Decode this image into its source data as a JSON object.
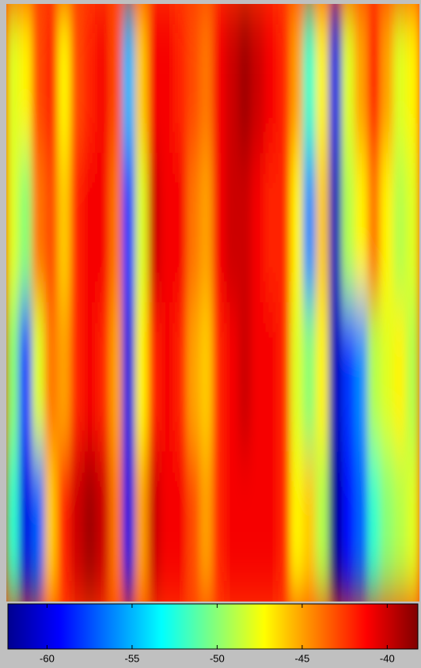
{
  "chart_data": {
    "type": "heatmap",
    "values": [
      [
        -48,
        -47,
        -43,
        -42,
        -47,
        -43,
        -42,
        -41,
        -43,
        -55,
        -46,
        -41,
        -41,
        -42,
        -43,
        -44,
        -41,
        -40,
        -39,
        -40,
        -41,
        -42,
        -45,
        -52,
        -47,
        -60,
        -48,
        -45,
        -42,
        -45,
        -48,
        -47
      ],
      [
        -48,
        -50,
        -44,
        -43,
        -46,
        -42,
        -41,
        -41,
        -44,
        -58,
        -48,
        -40,
        -41,
        -41,
        -44,
        -45,
        -41,
        -40,
        -40,
        -41,
        -42,
        -42,
        -47,
        -56,
        -46,
        -61,
        -49,
        -47,
        -44,
        -47,
        -49,
        -48
      ],
      [
        -50,
        -58,
        -48,
        -44,
        -45,
        -42,
        -41,
        -42,
        -45,
        -60,
        -47,
        -42,
        -41,
        -42,
        -45,
        -46,
        -42,
        -41,
        -40,
        -41,
        -41,
        -42,
        -48,
        -50,
        -47,
        -61,
        -58,
        -56,
        -49,
        -48,
        -47,
        -49
      ],
      [
        -52,
        -60,
        -57,
        -46,
        -42,
        -40,
        -39,
        -40,
        -44,
        -60,
        -45,
        -40,
        -41,
        -41,
        -43,
        -45,
        -42,
        -41,
        -41,
        -41,
        -41,
        -42,
        -47,
        -46,
        -49,
        -62,
        -59,
        -57,
        -52,
        -50,
        -49,
        -48
      ]
    ],
    "clim": [
      -62.3,
      -38.2
    ],
    "cticks": [
      -60,
      -55,
      -50,
      -45,
      -40
    ]
  }
}
